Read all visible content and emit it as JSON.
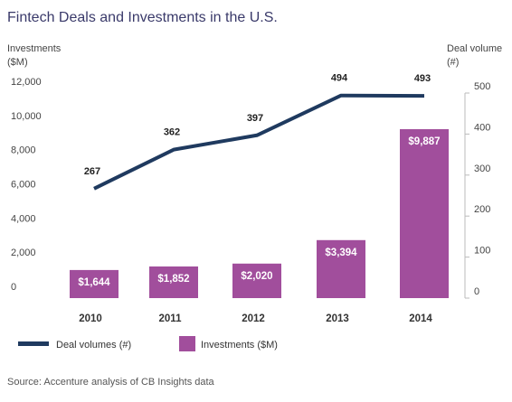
{
  "chart_data": {
    "type": "bar",
    "title": "Fintech Deals and Investments in the U.S.",
    "categories": [
      "2010",
      "2011",
      "2012",
      "2013",
      "2014"
    ],
    "left_axis": {
      "label_line1": "Investments",
      "label_line2": "($M)",
      "ylim": [
        0,
        12000
      ],
      "ticks": [
        0,
        2000,
        4000,
        6000,
        8000,
        10000,
        12000
      ],
      "tick_labels": [
        "0",
        "2,000",
        "4,000",
        "6,000",
        "8,000",
        "10,000",
        "12,000"
      ]
    },
    "right_axis": {
      "label_line1": "Deal volume",
      "label_line2": "(#)",
      "ylim": [
        0,
        500
      ],
      "ticks": [
        0,
        100,
        200,
        300,
        400,
        500
      ],
      "tick_labels": [
        "0",
        "100",
        "200",
        "300",
        "400",
        "500"
      ]
    },
    "series": [
      {
        "name": "Investments ($M)",
        "type": "bar",
        "axis": "left",
        "color": "#a14e9c",
        "values": [
          1644,
          1852,
          2020,
          3394,
          9887
        ],
        "labels": [
          "$1,644",
          "$1,852",
          "$2,020",
          "$3,394",
          "$9,887"
        ]
      },
      {
        "name": "Deal volumes (#)",
        "type": "line",
        "axis": "right",
        "color": "#1f3a5f",
        "values": [
          267,
          362,
          397,
          494,
          493
        ],
        "labels": [
          "267",
          "362",
          "397",
          "494",
          "493"
        ]
      }
    ],
    "legend_placement": "bottom-left",
    "grid": false
  },
  "source": "Source: Accenture analysis of CB Insights data"
}
